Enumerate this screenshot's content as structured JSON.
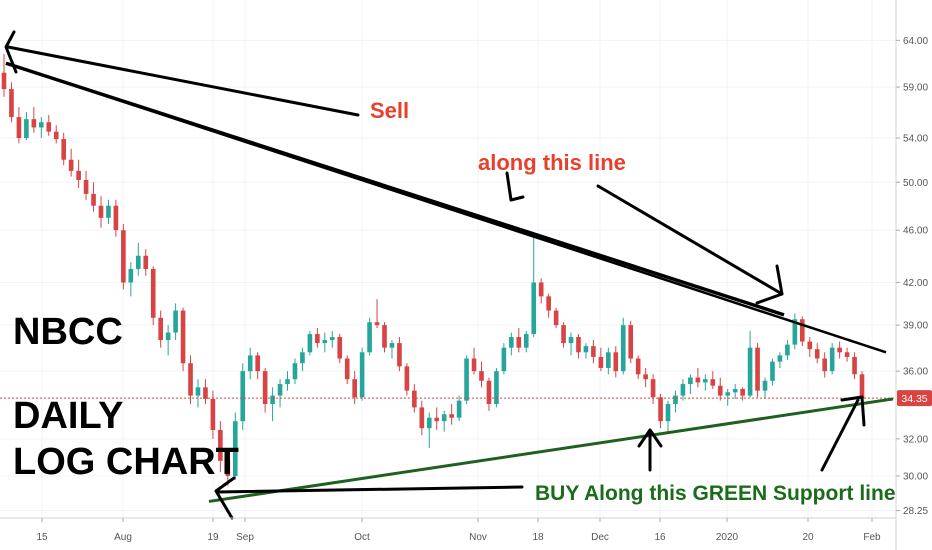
{
  "chart_data": {
    "type": "candlestick",
    "title": "NBCC",
    "subtitle": [
      "DAILY",
      "LOG CHART"
    ],
    "y_scale": "log",
    "ylim": [
      27.5,
      65.5
    ],
    "y_ticks": [
      "64.00",
      "59.00",
      "54.00",
      "50.00",
      "46.00",
      "42.00",
      "39.00",
      "36.00",
      "32.00",
      "30.00",
      "28.25"
    ],
    "x_tick_labels": [
      "15",
      "Aug",
      "19",
      "Sep",
      "Oct",
      "Nov",
      "18",
      "Dec",
      "16",
      "2020",
      "20",
      "Feb"
    ],
    "last_price": "34.35",
    "colors": {
      "up": "#26a69a",
      "down": "#d84343",
      "resistance": "#000000",
      "support": "#1f5f1f",
      "price_line": "#d84343"
    },
    "annotations": {
      "sell": "Sell",
      "along_line": "along this line",
      "buy": "BUY Along this GREEN Support line"
    },
    "resistance_lines": [
      {
        "from": [
          "early Jul",
          61.5
        ],
        "to": [
          "late Jan",
          39.7
        ]
      },
      {
        "from": [
          "early Jul",
          61.5
        ],
        "to": [
          "early Feb",
          37.2
        ]
      }
    ],
    "support_line": {
      "from": [
        "late Aug",
        28.7
      ],
      "to": [
        "early Feb",
        34.3
      ]
    },
    "ohlc": [
      [
        60.5,
        62.5,
        58.0,
        58.8
      ],
      [
        58.8,
        59.5,
        55.5,
        56.0
      ],
      [
        56.0,
        57.0,
        53.5,
        54.0
      ],
      [
        54.0,
        56.5,
        53.8,
        55.8
      ],
      [
        55.8,
        57.0,
        54.5,
        55.0
      ],
      [
        55.0,
        56.0,
        54.0,
        55.5
      ],
      [
        55.5,
        56.2,
        54.2,
        54.6
      ],
      [
        54.6,
        55.2,
        53.5,
        53.9
      ],
      [
        53.9,
        54.5,
        51.5,
        52.0
      ],
      [
        52.0,
        53.0,
        50.5,
        51.0
      ],
      [
        51.0,
        52.0,
        49.5,
        50.2
      ],
      [
        50.2,
        51.0,
        48.5,
        49.0
      ],
      [
        49.0,
        50.0,
        47.5,
        48.0
      ],
      [
        48.0,
        48.8,
        46.2,
        47.0
      ],
      [
        47.0,
        48.5,
        46.5,
        48.0
      ],
      [
        48.0,
        48.5,
        45.5,
        46.0
      ],
      [
        46.0,
        46.5,
        41.5,
        42.0
      ],
      [
        42.0,
        43.5,
        41.0,
        43.0
      ],
      [
        43.0,
        45.0,
        42.5,
        44.0
      ],
      [
        44.0,
        44.5,
        42.5,
        43.0
      ],
      [
        43.0,
        43.2,
        39.0,
        39.5
      ],
      [
        39.5,
        40.0,
        37.5,
        38.0
      ],
      [
        38.0,
        39.0,
        37.0,
        38.5
      ],
      [
        38.5,
        40.5,
        38.0,
        40.0
      ],
      [
        40.0,
        40.2,
        36.0,
        36.5
      ],
      [
        36.5,
        37.0,
        34.0,
        34.5
      ],
      [
        34.5,
        35.5,
        33.8,
        35.0
      ],
      [
        35.0,
        35.5,
        34.0,
        34.3
      ],
      [
        34.3,
        34.8,
        32.0,
        32.5
      ],
      [
        32.5,
        33.0,
        30.2,
        30.8
      ],
      [
        30.8,
        31.0,
        29.5,
        30.0
      ],
      [
        30.0,
        33.5,
        29.8,
        33.0
      ],
      [
        33.0,
        36.5,
        32.5,
        36.0
      ],
      [
        36.0,
        37.5,
        35.5,
        37.0
      ],
      [
        37.0,
        37.2,
        35.5,
        36.0
      ],
      [
        36.0,
        36.2,
        33.5,
        34.0
      ],
      [
        34.0,
        35.0,
        33.0,
        34.5
      ],
      [
        34.5,
        35.5,
        33.8,
        35.2
      ],
      [
        35.2,
        36.0,
        34.8,
        35.5
      ],
      [
        35.5,
        36.8,
        35.2,
        36.5
      ],
      [
        36.5,
        37.5,
        36.0,
        37.2
      ],
      [
        37.2,
        38.6,
        37.0,
        38.4
      ],
      [
        38.4,
        38.8,
        37.5,
        37.8
      ],
      [
        37.8,
        38.5,
        37.2,
        38.0
      ],
      [
        38.0,
        38.6,
        37.5,
        38.2
      ],
      [
        38.2,
        38.4,
        36.5,
        36.8
      ],
      [
        36.8,
        37.0,
        35.2,
        35.5
      ],
      [
        35.5,
        36.0,
        34.0,
        34.4
      ],
      [
        34.4,
        37.5,
        34.2,
        37.2
      ],
      [
        37.2,
        39.5,
        37.0,
        39.2
      ],
      [
        39.2,
        40.8,
        38.8,
        39.0
      ],
      [
        39.0,
        39.2,
        37.2,
        37.5
      ],
      [
        37.5,
        38.0,
        36.8,
        37.8
      ],
      [
        37.8,
        38.2,
        36.0,
        36.3
      ],
      [
        36.3,
        36.5,
        34.5,
        34.8
      ],
      [
        34.8,
        35.2,
        33.5,
        33.8
      ],
      [
        33.8,
        34.2,
        32.2,
        32.6
      ],
      [
        32.6,
        33.5,
        31.5,
        33.2
      ],
      [
        33.2,
        33.8,
        32.5,
        33.0
      ],
      [
        33.0,
        33.6,
        32.4,
        33.4
      ],
      [
        33.4,
        34.0,
        32.8,
        33.2
      ],
      [
        33.2,
        34.5,
        33.0,
        34.2
      ],
      [
        34.2,
        37.0,
        34.0,
        36.8
      ],
      [
        36.8,
        37.5,
        35.8,
        36.0
      ],
      [
        36.0,
        36.6,
        35.0,
        35.4
      ],
      [
        35.4,
        35.6,
        33.6,
        34.0
      ],
      [
        34.0,
        36.2,
        33.8,
        36.0
      ],
      [
        36.0,
        37.8,
        35.8,
        37.5
      ],
      [
        37.5,
        38.5,
        37.0,
        38.2
      ],
      [
        38.2,
        38.8,
        37.2,
        37.5
      ],
      [
        37.5,
        38.6,
        37.2,
        38.4
      ],
      [
        38.4,
        45.5,
        38.2,
        42.0
      ],
      [
        42.0,
        42.3,
        40.5,
        41.0
      ],
      [
        41.0,
        41.2,
        39.5,
        40.0
      ],
      [
        40.0,
        40.2,
        38.8,
        39.0
      ],
      [
        39.0,
        39.2,
        37.5,
        37.8
      ],
      [
        37.8,
        38.5,
        37.0,
        38.2
      ],
      [
        38.2,
        38.4,
        36.8,
        37.2
      ],
      [
        37.2,
        37.8,
        36.8,
        37.6
      ],
      [
        37.6,
        38.0,
        36.5,
        36.9
      ],
      [
        36.9,
        37.5,
        36.0,
        36.2
      ],
      [
        36.2,
        37.5,
        35.8,
        37.2
      ],
      [
        37.2,
        37.6,
        35.6,
        36.0
      ],
      [
        36.0,
        39.5,
        35.8,
        39.0
      ],
      [
        39.0,
        39.3,
        36.5,
        36.8
      ],
      [
        36.8,
        37.0,
        35.5,
        35.8
      ],
      [
        35.8,
        36.2,
        35.0,
        35.5
      ],
      [
        35.5,
        35.8,
        34.0,
        34.4
      ],
      [
        34.4,
        34.6,
        32.6,
        33.0
      ],
      [
        33.0,
        34.2,
        32.4,
        34.0
      ],
      [
        34.0,
        34.8,
        33.5,
        34.5
      ],
      [
        34.5,
        35.5,
        34.2,
        35.2
      ],
      [
        35.2,
        35.8,
        34.6,
        35.6
      ],
      [
        35.6,
        36.2,
        35.0,
        35.3
      ],
      [
        35.3,
        35.8,
        34.8,
        35.5
      ],
      [
        35.5,
        36.0,
        34.9,
        35.1
      ],
      [
        35.1,
        35.6,
        34.2,
        34.5
      ],
      [
        34.5,
        34.9,
        33.9,
        34.7
      ],
      [
        34.7,
        35.2,
        34.3,
        34.9
      ],
      [
        34.9,
        35.0,
        34.2,
        34.5
      ],
      [
        34.5,
        38.6,
        34.4,
        37.5
      ],
      [
        37.5,
        37.8,
        34.4,
        34.8
      ],
      [
        34.8,
        35.6,
        34.3,
        35.4
      ],
      [
        35.4,
        36.8,
        35.1,
        36.6
      ],
      [
        36.6,
        37.2,
        36.2,
        37.0
      ],
      [
        37.0,
        38.0,
        36.7,
        37.7
      ],
      [
        37.7,
        39.8,
        37.4,
        39.4
      ],
      [
        39.4,
        39.6,
        37.6,
        37.9
      ],
      [
        37.9,
        38.2,
        36.9,
        37.4
      ],
      [
        37.4,
        37.8,
        36.5,
        36.8
      ],
      [
        36.8,
        37.2,
        35.6,
        36.0
      ],
      [
        36.0,
        37.8,
        35.8,
        37.5
      ],
      [
        37.5,
        37.9,
        36.8,
        37.2
      ],
      [
        37.2,
        37.5,
        36.6,
        36.9
      ],
      [
        36.9,
        37.2,
        35.5,
        35.8
      ],
      [
        35.8,
        36.0,
        34.2,
        34.35
      ]
    ]
  }
}
